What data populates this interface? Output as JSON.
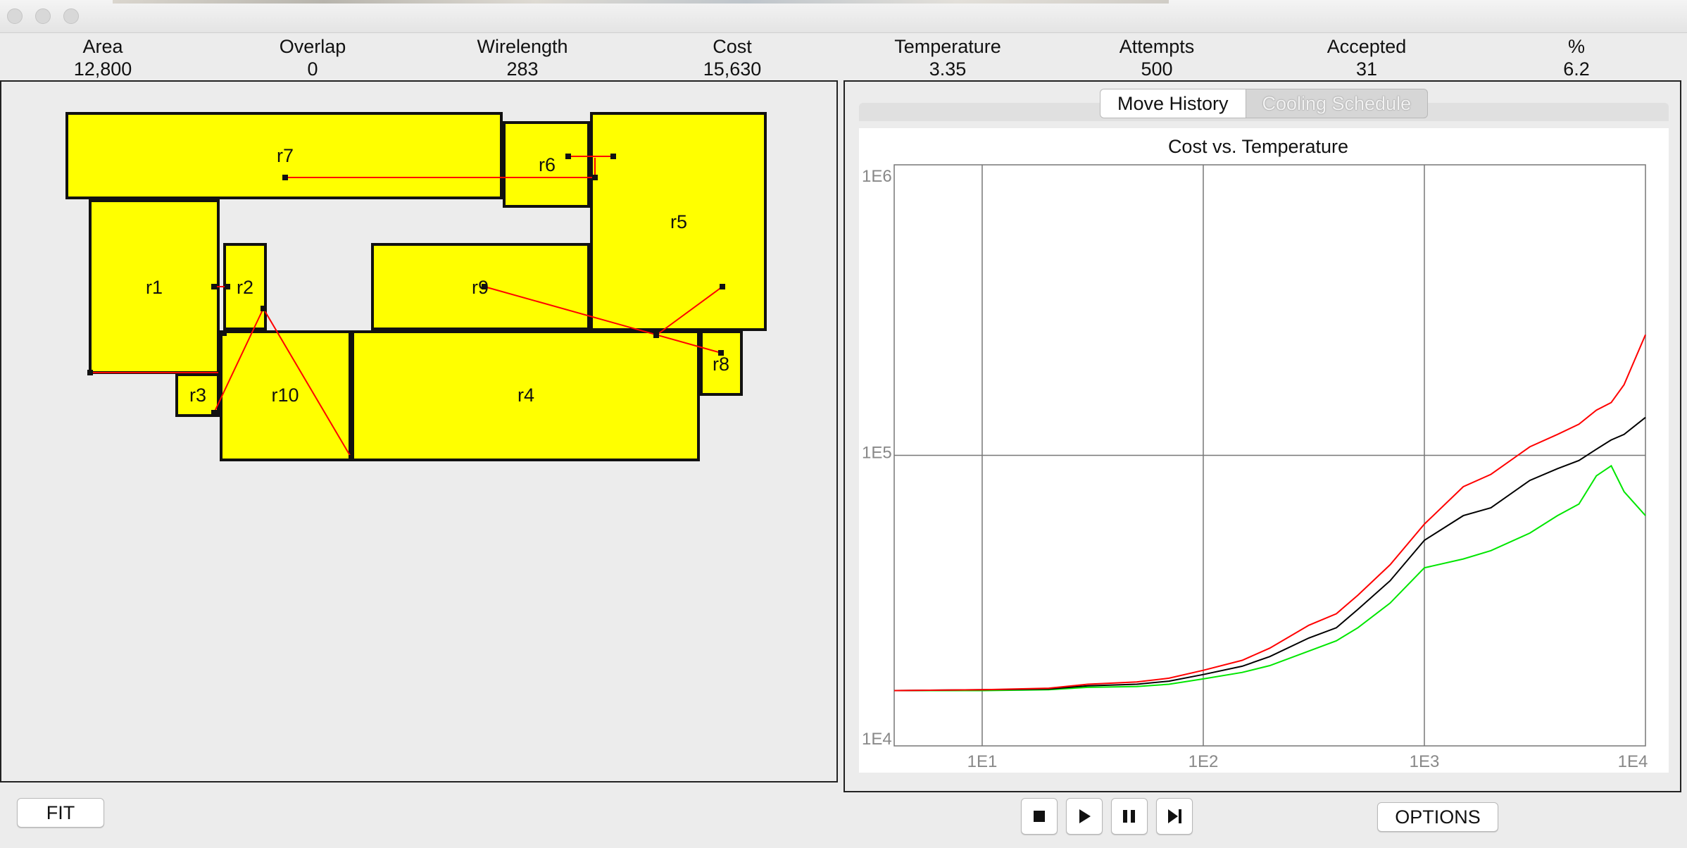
{
  "window": {
    "title": ""
  },
  "stats": [
    {
      "label": "Area",
      "value": "12,800"
    },
    {
      "label": "Overlap",
      "value": "0"
    },
    {
      "label": "Wirelength",
      "value": "283"
    },
    {
      "label": "Cost",
      "value": "15,630"
    },
    {
      "label": "Temperature",
      "value": "3.35"
    },
    {
      "label": "Attempts",
      "value": "500"
    },
    {
      "label": "Accepted",
      "value": "31"
    },
    {
      "label": "%",
      "value": "6.2"
    }
  ],
  "colors": {
    "block_fill": "#ffff00",
    "wire": "#ff0000",
    "series_red": "#ff0000",
    "series_black": "#000000",
    "series_green": "#00e600"
  },
  "placement": {
    "blocks": [
      {
        "id": "r7",
        "label": "r7"
      },
      {
        "id": "r6",
        "label": "r6"
      },
      {
        "id": "r5",
        "label": "r5"
      },
      {
        "id": "r1",
        "label": "r1"
      },
      {
        "id": "r2",
        "label": "r2"
      },
      {
        "id": "r9",
        "label": "r9"
      },
      {
        "id": "r3",
        "label": "r3"
      },
      {
        "id": "r10",
        "label": "r10"
      },
      {
        "id": "r4",
        "label": "r4"
      },
      {
        "id": "r8",
        "label": "r8"
      }
    ]
  },
  "tabs": [
    {
      "label": "Move History",
      "selected": true
    },
    {
      "label": "Cooling Schedule",
      "selected": false
    }
  ],
  "chart_data": {
    "type": "line",
    "title": "Cost vs. Temperature",
    "xlabel": "",
    "ylabel": "",
    "x_scale": "log",
    "y_scale": "log",
    "xlim": [
      4,
      10000
    ],
    "ylim": [
      10000,
      1000000
    ],
    "x_ticks": [
      "1E1",
      "1E2",
      "1E3",
      "1E4"
    ],
    "y_ticks": [
      "1E4",
      "1E5",
      "1E6"
    ],
    "grid": true,
    "x": [
      4,
      10,
      20,
      30,
      50,
      70,
      100,
      150,
      200,
      300,
      400,
      500,
      700,
      1000,
      1500,
      2000,
      3000,
      4000,
      5000,
      6000,
      7000,
      8000,
      10000
    ],
    "series": [
      {
        "color": "red",
        "values": [
          15500,
          15600,
          15800,
          16300,
          16600,
          17100,
          18200,
          19700,
          21700,
          26000,
          28500,
          33000,
          42000,
          58000,
          78000,
          86000,
          107000,
          118000,
          128000,
          143000,
          152000,
          175000,
          260000
        ]
      },
      {
        "color": "black",
        "values": [
          15500,
          15600,
          15700,
          16100,
          16300,
          16700,
          17600,
          18800,
          20300,
          23500,
          25500,
          29500,
          37000,
          51000,
          62000,
          66000,
          82000,
          90000,
          96000,
          105000,
          113000,
          118000,
          135000
        ]
      },
      {
        "color": "green",
        "values": [
          15500,
          15500,
          15600,
          15900,
          16000,
          16300,
          17000,
          17900,
          18900,
          21200,
          23000,
          25500,
          31000,
          41000,
          44000,
          47000,
          54000,
          62000,
          68000,
          85000,
          92000,
          75000,
          62000
        ]
      }
    ]
  },
  "controls": {
    "fit_label": "FIT",
    "options_label": "OPTIONS",
    "stop_icon": "stop-icon",
    "play_icon": "play-icon",
    "pause_icon": "pause-icon",
    "step_icon": "step-forward-icon"
  }
}
